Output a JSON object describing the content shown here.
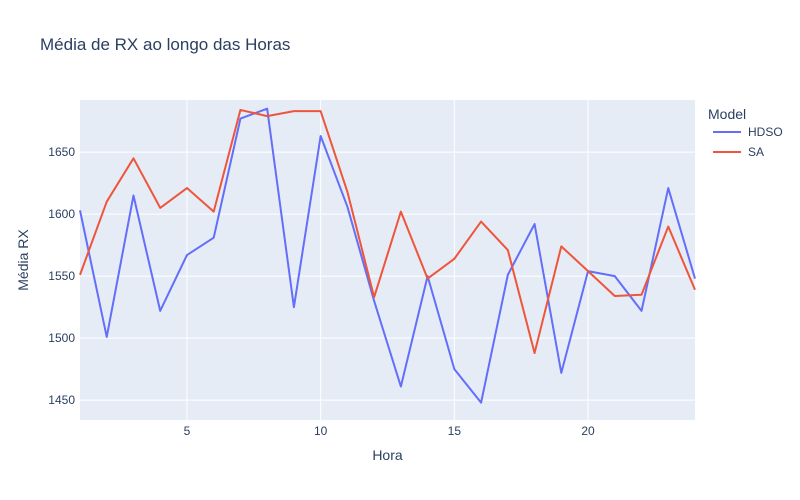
{
  "chart_data": {
    "type": "line",
    "title": "Média de RX ao longo das Horas",
    "xlabel": "Hora",
    "ylabel": "Média RX",
    "xlim": [
      1,
      24
    ],
    "ylim": [
      1434,
      1692
    ],
    "x_ticks": [
      5,
      10,
      15,
      20
    ],
    "y_ticks": [
      1450,
      1500,
      1550,
      1600,
      1650
    ],
    "grid": true,
    "legend": {
      "title": "Model",
      "placement": "top-right, outside plot"
    },
    "x": [
      1,
      2,
      3,
      4,
      5,
      6,
      7,
      8,
      9,
      10,
      11,
      12,
      13,
      14,
      15,
      16,
      17,
      18,
      19,
      20,
      21,
      22,
      23,
      24
    ],
    "series": [
      {
        "name": "HDSO",
        "color": "#636efa",
        "values": [
          1603,
          1501,
          1615,
          1522,
          1567,
          1581,
          1677,
          1685,
          1525,
          1663,
          1606,
          1530,
          1461,
          1550,
          1475,
          1448,
          1551,
          1592,
          1472,
          1554,
          1550,
          1522,
          1621,
          1548
        ]
      },
      {
        "name": "SA",
        "color": "#ef553b",
        "values": [
          1551,
          1610,
          1645,
          1605,
          1621,
          1602,
          1684,
          1679,
          1683,
          1683,
          1618,
          1533,
          1602,
          1548,
          1564,
          1594,
          1571,
          1488,
          1574,
          1554,
          1534,
          1535,
          1590,
          1539
        ]
      }
    ]
  },
  "colors": {
    "plot_background": "#e5ecf6",
    "grid": "#ffffff",
    "text": "#2a3f5f"
  }
}
